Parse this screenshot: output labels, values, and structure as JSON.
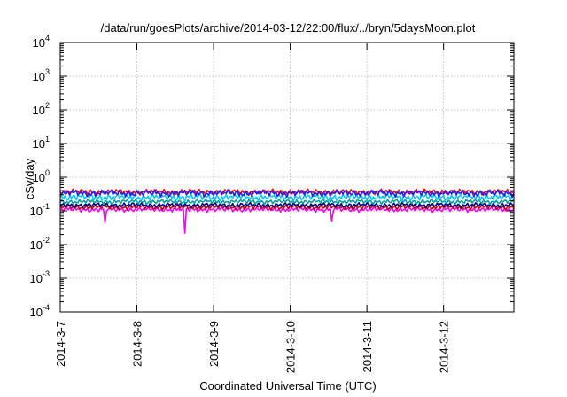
{
  "chart_data": {
    "type": "line",
    "title": "/data/run/goesPlots/archive/2014-03-12/22:00/flux/../bryn/5daysMoon.plot",
    "xlabel": "Coordinated Universal Time (UTC)",
    "ylabel": "cSv/day",
    "xlim": [
      "2014-03-07",
      "2014-03-12 22:00"
    ],
    "ylim": [
      0.0001,
      10000
    ],
    "yscale": "log",
    "grid": true,
    "legend": "none",
    "x_ticks": [
      "2014-3-7",
      "2014-3-8",
      "2014-3-9",
      "2014-3-10",
      "2014-3-11",
      "2014-3-12"
    ],
    "y_ticks": [
      {
        "base": "10",
        "exp": "-4"
      },
      {
        "base": "10",
        "exp": "-3"
      },
      {
        "base": "10",
        "exp": "-2"
      },
      {
        "base": "10",
        "exp": "-1"
      },
      {
        "base": "10",
        "exp": "0"
      },
      {
        "base": "10",
        "exp": "1"
      },
      {
        "base": "10",
        "exp": "2"
      },
      {
        "base": "10",
        "exp": "3"
      },
      {
        "base": "10",
        "exp": "4"
      }
    ],
    "series": [
      {
        "color": "#ff00ff",
        "base": 0.11,
        "noise": 0.1,
        "dips": [
          {
            "x": "2014-03-07 14:00",
            "y": 0.045
          },
          {
            "x": "2014-03-08 15:00",
            "y": 0.022
          },
          {
            "x": "2014-03-10 13:00",
            "y": 0.05
          }
        ]
      },
      {
        "color": "#c00000",
        "base": 0.13,
        "noise": 0.1,
        "dips": []
      },
      {
        "color": "#000080",
        "base": 0.15,
        "noise": 0.1,
        "dips": []
      },
      {
        "color": "#00a0a0",
        "base": 0.19,
        "noise": 0.1,
        "dips": []
      },
      {
        "color": "#00c8ff",
        "base": 0.26,
        "noise": 0.14,
        "dips": []
      },
      {
        "color": "#ff0000",
        "base": 0.37,
        "noise": 0.12,
        "dips": []
      },
      {
        "color": "#2020ff",
        "base": 0.34,
        "noise": 0.14,
        "dips": []
      }
    ]
  }
}
